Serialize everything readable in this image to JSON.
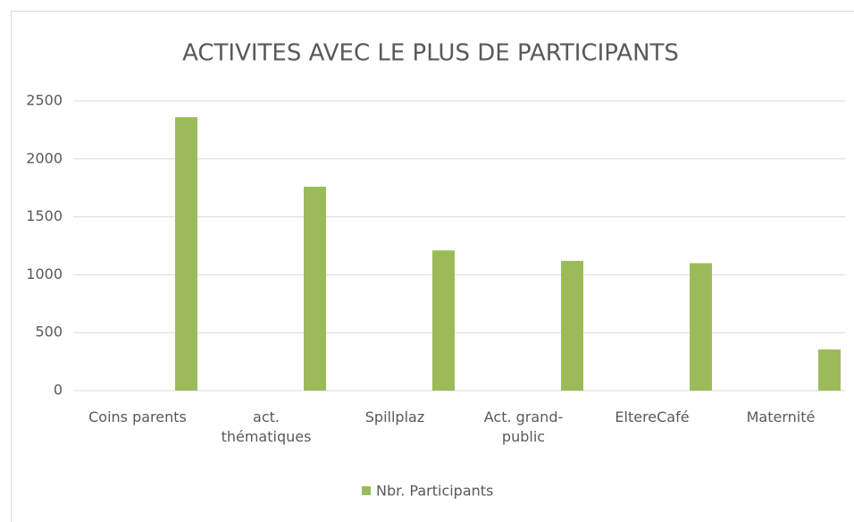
{
  "chart_data": {
    "type": "bar",
    "title": "ACTIVITES AVEC LE PLUS DE PARTICIPANTS",
    "categories": [
      "Coins parents",
      "act. thématiques",
      "Spillplaz",
      "Act. grand-public",
      "EltereCafé",
      "Maternité"
    ],
    "series": [
      {
        "name": "Nbr. Participants",
        "color": "#9bbb59",
        "values": [
          2360,
          1760,
          1210,
          1120,
          1100,
          355
        ]
      }
    ],
    "ylim": [
      0,
      2500
    ],
    "yticks": [
      0,
      500,
      1000,
      1500,
      2000,
      2500
    ],
    "grid": true,
    "legend": "bottom"
  }
}
